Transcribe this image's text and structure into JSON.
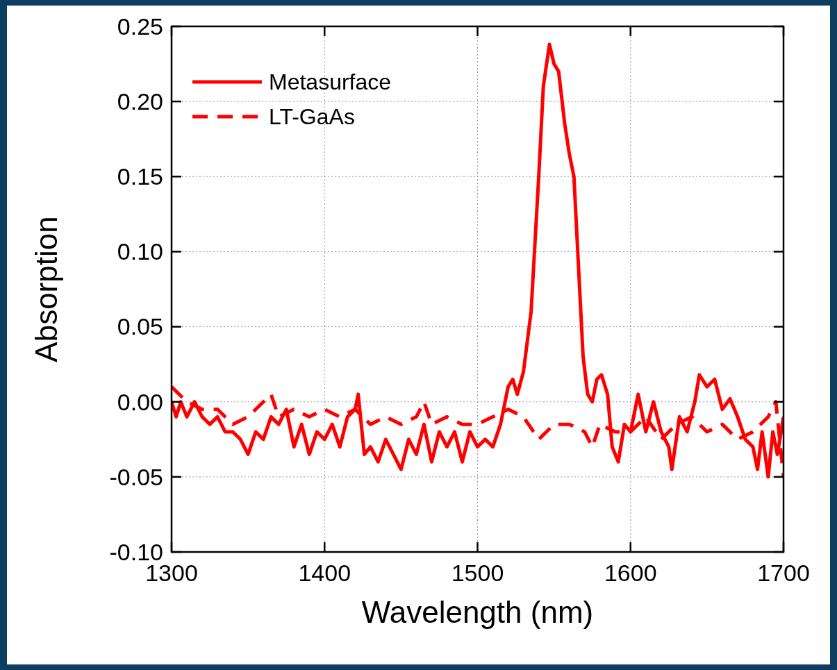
{
  "chart_data": {
    "type": "line",
    "xlabel": "Wavelength (nm)",
    "ylabel": "Absorption",
    "xlim": [
      1300,
      1700
    ],
    "xticks": [
      1300,
      1400,
      1500,
      1600,
      1700
    ],
    "ylim": [
      -0.1,
      0.25
    ],
    "yticks": [
      {
        "value": -0.1,
        "label": "-0.10"
      },
      {
        "value": -0.05,
        "label": "-0.05"
      },
      {
        "value": 0,
        "label": "0.00"
      },
      {
        "value": 0.05,
        "label": "0.05"
      },
      {
        "value": 0.1,
        "label": "0.10"
      },
      {
        "value": 0.15,
        "label": "0.15"
      },
      {
        "value": 0.2,
        "label": "0.20"
      },
      {
        "value": 0.25,
        "label": "0.25"
      }
    ],
    "grid": true,
    "legend": "top left",
    "series": [
      {
        "name": "Metasurface",
        "color": "#ff0000",
        "line_style": "solid",
        "x": [
          1300,
          1303,
          1306,
          1310,
          1315,
          1320,
          1325,
          1330,
          1335,
          1340,
          1345,
          1350,
          1355,
          1360,
          1365,
          1370,
          1375,
          1380,
          1385,
          1390,
          1395,
          1400,
          1405,
          1410,
          1415,
          1420,
          1422,
          1426,
          1430,
          1435,
          1440,
          1445,
          1450,
          1455,
          1460,
          1465,
          1470,
          1475,
          1480,
          1485,
          1490,
          1495,
          1500,
          1505,
          1510,
          1515,
          1520,
          1523,
          1526,
          1530,
          1535,
          1540,
          1543,
          1547,
          1550,
          1553,
          1557,
          1560,
          1563,
          1566,
          1569,
          1572,
          1575,
          1578,
          1581,
          1585,
          1588,
          1592,
          1596,
          1600,
          1605,
          1610,
          1615,
          1620,
          1625,
          1627,
          1632,
          1637,
          1642,
          1645,
          1650,
          1655,
          1660,
          1665,
          1670,
          1675,
          1680,
          1683,
          1686,
          1690,
          1693,
          1696,
          1700
        ],
        "values": [
          0.0,
          -0.01,
          0.0,
          -0.01,
          0.0,
          -0.01,
          -0.015,
          -0.01,
          -0.02,
          -0.02,
          -0.025,
          -0.035,
          -0.02,
          -0.025,
          -0.01,
          -0.015,
          -0.005,
          -0.03,
          -0.015,
          -0.035,
          -0.02,
          -0.025,
          -0.015,
          -0.03,
          -0.01,
          -0.005,
          0.005,
          -0.035,
          -0.03,
          -0.04,
          -0.025,
          -0.035,
          -0.045,
          -0.025,
          -0.035,
          -0.015,
          -0.04,
          -0.02,
          -0.03,
          -0.02,
          -0.04,
          -0.02,
          -0.03,
          -0.025,
          -0.03,
          -0.015,
          0.01,
          0.015,
          0.005,
          0.02,
          0.06,
          0.15,
          0.21,
          0.238,
          0.225,
          0.22,
          0.185,
          0.165,
          0.15,
          0.09,
          0.03,
          0.005,
          0.0,
          0.015,
          0.018,
          0.005,
          -0.03,
          -0.04,
          -0.015,
          -0.02,
          0.005,
          -0.02,
          0.0,
          -0.02,
          -0.03,
          -0.045,
          -0.01,
          -0.02,
          0.0,
          0.018,
          0.01,
          0.015,
          -0.005,
          0.002,
          -0.01,
          -0.025,
          -0.03,
          -0.045,
          -0.02,
          -0.05,
          -0.02,
          -0.035,
          -0.01
        ]
      },
      {
        "name": "LT-GaAs",
        "color": "#ff0000",
        "line_style": "dashed",
        "x": [
          1300,
          1310,
          1320,
          1330,
          1340,
          1350,
          1360,
          1365,
          1370,
          1380,
          1390,
          1400,
          1410,
          1420,
          1430,
          1440,
          1450,
          1460,
          1465,
          1470,
          1480,
          1490,
          1500,
          1510,
          1520,
          1530,
          1540,
          1550,
          1560,
          1570,
          1575,
          1580,
          1590,
          1600,
          1610,
          1620,
          1630,
          1640,
          1650,
          1660,
          1670,
          1680,
          1690,
          1695,
          1700
        ],
        "values": [
          0.01,
          0.0,
          -0.005,
          -0.005,
          -0.015,
          -0.01,
          0.0,
          0.005,
          -0.01,
          -0.005,
          -0.01,
          -0.005,
          -0.01,
          -0.005,
          -0.015,
          -0.01,
          -0.015,
          -0.01,
          0.0,
          -0.015,
          -0.01,
          -0.015,
          -0.015,
          -0.01,
          -0.005,
          -0.01,
          -0.025,
          -0.015,
          -0.015,
          -0.02,
          -0.03,
          -0.015,
          -0.02,
          -0.02,
          -0.01,
          -0.025,
          -0.015,
          -0.01,
          -0.02,
          -0.015,
          -0.025,
          -0.02,
          -0.01,
          0.0,
          -0.05
        ]
      }
    ]
  }
}
